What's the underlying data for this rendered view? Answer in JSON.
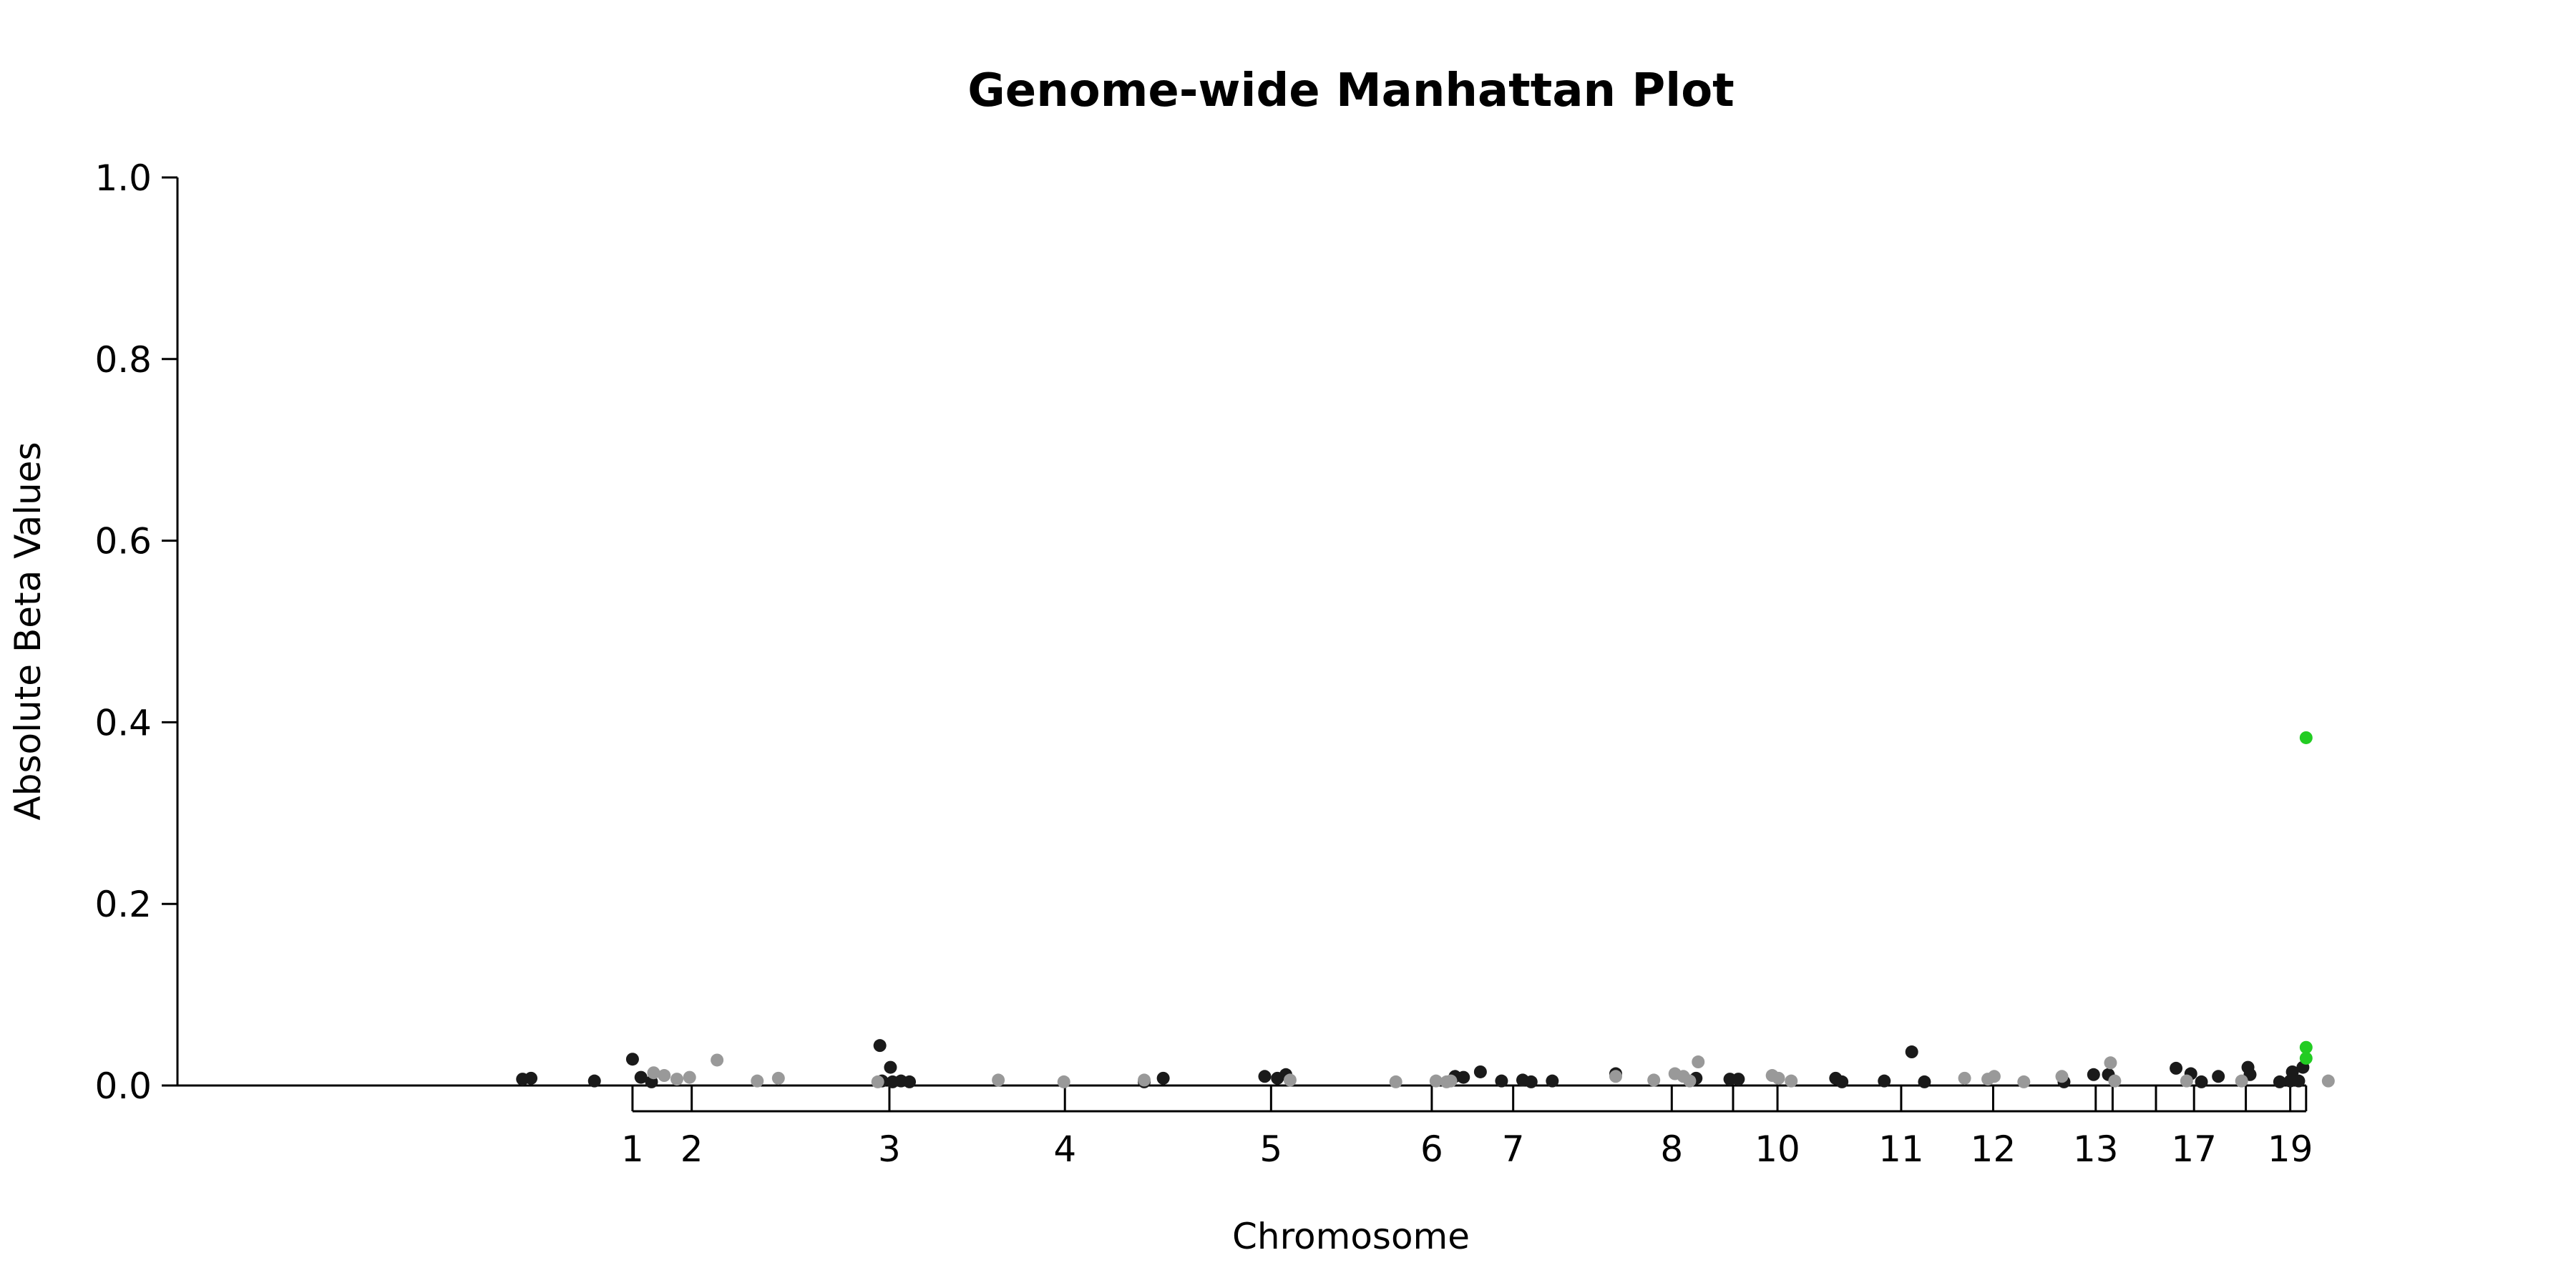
{
  "chart_data": {
    "type": "scatter",
    "title": "Genome-wide Manhattan Plot",
    "xlabel": "Chromosome",
    "ylabel": "Absolute Beta Values",
    "ylim": [
      0,
      1.0
    ],
    "xlim": [
      0,
      100
    ],
    "yticks": [
      0.0,
      0.2,
      0.4,
      0.6,
      0.8,
      1.0
    ],
    "ytick_labels": [
      "0.0",
      "0.2",
      "0.4",
      "0.6",
      "0.8",
      "1.0"
    ],
    "xticks": [
      {
        "label": "1",
        "x": 13.5
      },
      {
        "label": "2",
        "x": 16.3
      },
      {
        "label": "3",
        "x": 25.65
      },
      {
        "label": "4",
        "x": 33.95
      },
      {
        "label": "5",
        "x": 43.7
      },
      {
        "label": "6",
        "x": 51.3
      },
      {
        "label": "7",
        "x": 55.15
      },
      {
        "label": "8",
        "x": 62.65
      },
      {
        "label": "",
        "x": 65.55
      },
      {
        "label": "10",
        "x": 67.65
      },
      {
        "label": "11",
        "x": 73.5
      },
      {
        "label": "12",
        "x": 77.85
      },
      {
        "label": "13",
        "x": 82.7
      },
      {
        "label": "",
        "x": 83.5
      },
      {
        "label": "",
        "x": 85.55
      },
      {
        "label": "17",
        "x": 87.35
      },
      {
        "label": "",
        "x": 89.8
      },
      {
        "label": "19",
        "x": 91.9
      },
      {
        "label": "",
        "x": 92.65
      }
    ],
    "grid": false,
    "legend": "none",
    "colors": {
      "dark": "#1a1a1a",
      "light": "#999999",
      "highlight": "#22cc22"
    },
    "series": [
      {
        "color": "dark",
        "points": [
          [
            8.3,
            0.007
          ],
          [
            8.7,
            0.008
          ],
          [
            11.7,
            0.005
          ],
          [
            13.5,
            0.029
          ],
          [
            13.9,
            0.009
          ],
          [
            14.4,
            0.004
          ],
          [
            25.2,
            0.044
          ],
          [
            25.3,
            0.005
          ],
          [
            25.7,
            0.02
          ],
          [
            25.8,
            0.004
          ],
          [
            26.2,
            0.005
          ],
          [
            26.6,
            0.004
          ],
          [
            37.7,
            0.004
          ],
          [
            38.6,
            0.008
          ],
          [
            43.4,
            0.01
          ],
          [
            44.0,
            0.008
          ],
          [
            44.4,
            0.012
          ],
          [
            52.4,
            0.01
          ],
          [
            52.8,
            0.009
          ],
          [
            53.6,
            0.015
          ],
          [
            54.6,
            0.005
          ],
          [
            55.6,
            0.006
          ],
          [
            56.0,
            0.004
          ],
          [
            57.0,
            0.005
          ],
          [
            60.0,
            0.013
          ],
          [
            63.8,
            0.008
          ],
          [
            65.4,
            0.007
          ],
          [
            65.8,
            0.007
          ],
          [
            70.4,
            0.008
          ],
          [
            70.7,
            0.004
          ],
          [
            72.7,
            0.005
          ],
          [
            74.0,
            0.037
          ],
          [
            74.6,
            0.004
          ],
          [
            81.2,
            0.004
          ],
          [
            82.6,
            0.012
          ],
          [
            83.3,
            0.012
          ],
          [
            86.5,
            0.019
          ],
          [
            87.2,
            0.013
          ],
          [
            87.7,
            0.004
          ],
          [
            88.5,
            0.01
          ],
          [
            89.9,
            0.02
          ],
          [
            90.0,
            0.012
          ],
          [
            91.4,
            0.004
          ],
          [
            91.9,
            0.005
          ],
          [
            92.0,
            0.015
          ],
          [
            92.3,
            0.005
          ],
          [
            92.5,
            0.02
          ]
        ]
      },
      {
        "color": "light",
        "points": [
          [
            14.5,
            0.014
          ],
          [
            15.0,
            0.011
          ],
          [
            15.6,
            0.007
          ],
          [
            16.2,
            0.009
          ],
          [
            17.5,
            0.028
          ],
          [
            19.4,
            0.005
          ],
          [
            20.4,
            0.008
          ],
          [
            25.1,
            0.004
          ],
          [
            30.8,
            0.006
          ],
          [
            33.9,
            0.004
          ],
          [
            37.7,
            0.006
          ],
          [
            44.6,
            0.006
          ],
          [
            49.6,
            0.004
          ],
          [
            51.5,
            0.005
          ],
          [
            52.0,
            0.004
          ],
          [
            52.2,
            0.005
          ],
          [
            60.0,
            0.01
          ],
          [
            61.8,
            0.006
          ],
          [
            62.8,
            0.013
          ],
          [
            63.2,
            0.01
          ],
          [
            63.5,
            0.005
          ],
          [
            63.9,
            0.026
          ],
          [
            67.4,
            0.011
          ],
          [
            67.7,
            0.008
          ],
          [
            68.3,
            0.005
          ],
          [
            76.5,
            0.008
          ],
          [
            77.6,
            0.007
          ],
          [
            77.9,
            0.01
          ],
          [
            79.3,
            0.004
          ],
          [
            81.1,
            0.01
          ],
          [
            83.4,
            0.025
          ],
          [
            83.6,
            0.005
          ],
          [
            87.0,
            0.005
          ],
          [
            89.6,
            0.005
          ],
          [
            93.7,
            0.005
          ]
        ]
      },
      {
        "color": "highlight",
        "points": [
          [
            92.65,
            0.383
          ],
          [
            92.65,
            0.042
          ],
          [
            92.65,
            0.03
          ]
        ]
      }
    ]
  }
}
